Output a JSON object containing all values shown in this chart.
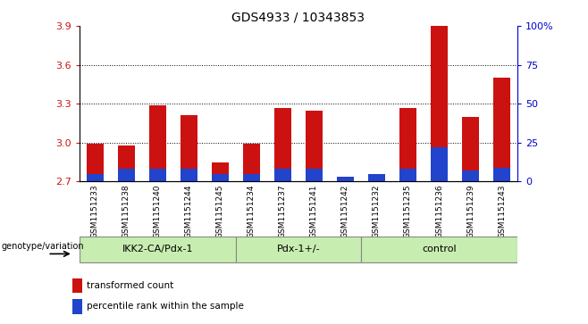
{
  "title": "GDS4933 / 10343853",
  "samples": [
    "GSM1151233",
    "GSM1151238",
    "GSM1151240",
    "GSM1151244",
    "GSM1151245",
    "GSM1151234",
    "GSM1151237",
    "GSM1151241",
    "GSM1151242",
    "GSM1151232",
    "GSM1151235",
    "GSM1151236",
    "GSM1151239",
    "GSM1151243"
  ],
  "red_values": [
    2.99,
    2.98,
    3.285,
    3.215,
    2.845,
    2.99,
    3.265,
    3.245,
    2.72,
    2.74,
    3.265,
    3.9,
    3.195,
    3.5
  ],
  "blue_percentile": [
    5,
    8,
    8,
    8,
    5,
    5,
    8,
    8,
    3,
    5,
    8,
    22,
    7,
    9
  ],
  "groups": [
    {
      "label": "IKK2-CA/Pdx-1",
      "start": 0,
      "end": 5
    },
    {
      "label": "Pdx-1+/-",
      "start": 5,
      "end": 9
    },
    {
      "label": "control",
      "start": 9,
      "end": 14
    }
  ],
  "ymin": 2.7,
  "ymax": 3.9,
  "yticks": [
    2.7,
    3.0,
    3.3,
    3.6,
    3.9
  ],
  "right_yticks": [
    0,
    25,
    50,
    75,
    100
  ],
  "right_yticklabels": [
    "0",
    "25",
    "50",
    "75",
    "100%"
  ],
  "bar_color_red": "#CC1111",
  "bar_color_blue": "#2244CC",
  "group_bg_color": "#c8edb0",
  "plot_bg_color": "#ffffff",
  "tick_area_color": "#cccccc",
  "legend_red_label": "transformed count",
  "legend_blue_label": "percentile rank within the sample",
  "genotype_label": "genotype/variation",
  "bar_width": 0.55
}
